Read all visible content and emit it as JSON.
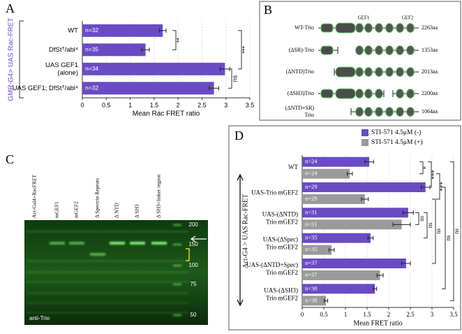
{
  "panel_letters": [
    "A",
    "B",
    "C",
    "D"
  ],
  "chart_data": [
    {
      "type": "bar",
      "orientation": "horizontal",
      "ylabel": "GMR-G4> UAS Rac-FRET",
      "xlabel": "Mean Rac FRET ratio",
      "categories": [
        "WT",
        "DfStᵀ/abl⁴",
        [
          "UAS GEF1",
          "(alone)"
        ],
        "UAS GEF1; DfStᵀ/abl⁴"
      ],
      "values": [
        1.68,
        1.32,
        2.98,
        2.75
      ],
      "errors": [
        0.07,
        0.08,
        0.1,
        0.1
      ],
      "bar_labels": [
        "n=32",
        "n=35",
        "n=34",
        "n=32"
      ],
      "color": "#6a4bc4",
      "xlim": [
        0,
        3.5
      ],
      "xticks": [
        0,
        0.5,
        1,
        1.5,
        2,
        2.5,
        3,
        3.5
      ],
      "grid": true,
      "significance": [
        "**",
        "***",
        "ns"
      ]
    },
    {
      "type": "bar",
      "orientation": "horizontal",
      "ylabel": "Act-G4 > UAS Rac-FRET",
      "xlabel": "Mean FRET ratio",
      "categories": [
        "WT",
        "UAS-Trio mGEF2",
        [
          "UAS-(ΔNTD)",
          "Trio mGEF2"
        ],
        [
          "UAS-(ΔSpec)",
          "Trio mGEF2"
        ],
        [
          "UAS-(ΔNTD+Spec)",
          "Trio mGEF2"
        ],
        [
          "UAS-(ΔSH3)",
          "Trio mGEF2"
        ]
      ],
      "series": [
        {
          "name": "STI-571 4.5μM (-)",
          "color": "#6a4bc4",
          "values": [
            1.55,
            2.85,
            2.45,
            1.58,
            2.4,
            1.68
          ],
          "errors": [
            0.1,
            0.1,
            0.12,
            0.06,
            0.1,
            0.04
          ],
          "bar_labels": [
            "n=24",
            "n=29",
            "n=31",
            "n=35",
            "n=37",
            "n=38"
          ]
        },
        {
          "name": "STI-571 4.5μM (+)",
          "color": "#9a9a9a",
          "values": [
            1.1,
            1.45,
            2.3,
            0.68,
            1.8,
            0.55
          ],
          "errors": [
            0.06,
            0.08,
            0.2,
            0.06,
            0.07,
            0.04
          ],
          "bar_labels": [
            "n=24",
            "n=29",
            "n=31",
            "n=35",
            "n=37",
            "n=38"
          ]
        }
      ],
      "xlim": [
        0,
        3.5
      ],
      "xticks": [
        0,
        0.5,
        1,
        1.5,
        2,
        2.5,
        3,
        3.5
      ],
      "grid": true,
      "legend": "top-right",
      "significance": [
        "*",
        "***",
        "***",
        "ns",
        "ns",
        "ns",
        "ns",
        "ns"
      ]
    }
  ],
  "diagram": {
    "headers": [
      "GEF1",
      "GEF2"
    ],
    "constructs": [
      {
        "name": "WT-Trio",
        "length": "2263aa"
      },
      {
        "name": "(ΔSR)-Trio",
        "length": "1353aa"
      },
      {
        "name": "(ΔNTD)Trio",
        "length": "2013aa"
      },
      {
        "name": "(ΔSH3)Trio",
        "length": "2200aa"
      },
      {
        "name": [
          "(ΔNTD+SR)",
          "Trio"
        ],
        "length": "1064aa"
      }
    ]
  },
  "blot": {
    "lanes": [
      "Act-Gal4+RacFRET",
      "mGEF1",
      "mGEF2",
      "Δ Spectrin Repeats",
      "Δ NTD",
      "Δ SH3",
      "Δ SH3+linker region"
    ],
    "markers": [
      200,
      150,
      100,
      75,
      50
    ],
    "antibody": "anti-Trio"
  }
}
